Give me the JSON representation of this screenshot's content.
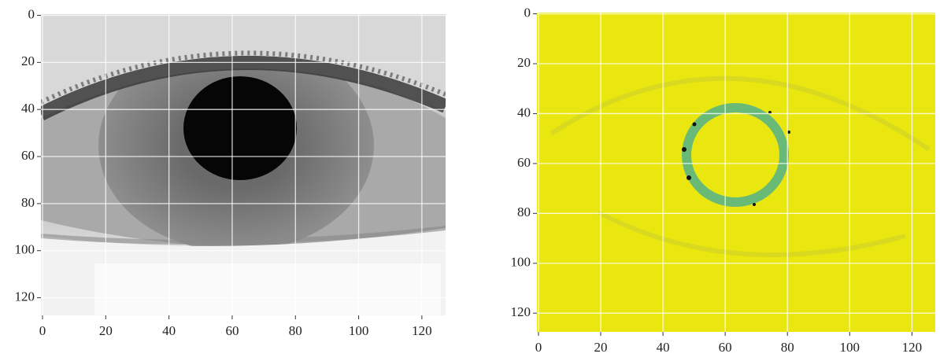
{
  "chart_data": [
    {
      "type": "image",
      "xlim": [
        -0.5,
        127.5
      ],
      "ylim": [
        127.5,
        -0.5
      ],
      "xticks": [
        0,
        20,
        40,
        60,
        80,
        100,
        120
      ],
      "yticks": [
        0,
        20,
        40,
        60,
        80,
        100,
        120
      ],
      "grid": true,
      "grid_color": "#ffffff"
    },
    {
      "type": "image",
      "xlim": [
        -0.5,
        127.5
      ],
      "ylim": [
        127.5,
        -0.5
      ],
      "xticks": [
        0,
        20,
        40,
        60,
        80,
        100,
        120
      ],
      "yticks": [
        0,
        20,
        40,
        60,
        80,
        100,
        120
      ],
      "grid": true,
      "grid_color": "#ffffff"
    }
  ]
}
